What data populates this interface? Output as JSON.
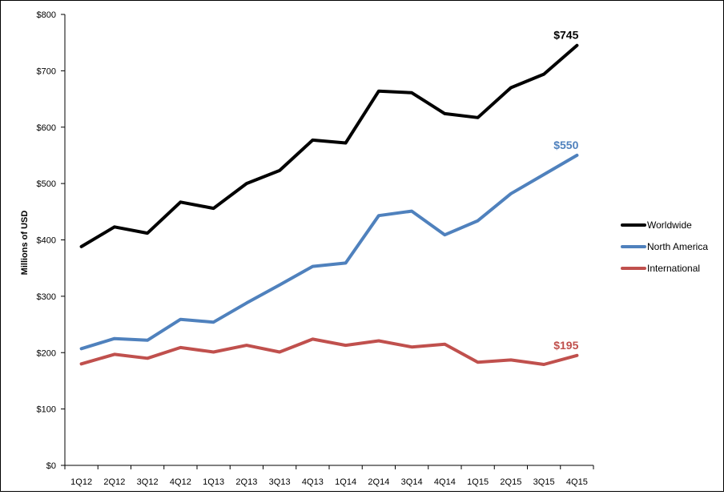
{
  "chart_data": {
    "type": "line",
    "title": "",
    "xlabel": "",
    "ylabel": "Millions of USD",
    "ylim": [
      0,
      800
    ],
    "y_tick_step": 100,
    "y_tick_prefix": "$",
    "grid": false,
    "legend_position": "right",
    "categories": [
      "1Q12",
      "2Q12",
      "3Q12",
      "4Q12",
      "1Q13",
      "2Q13",
      "3Q13",
      "4Q13",
      "1Q14",
      "2Q14",
      "3Q14",
      "4Q14",
      "1Q15",
      "2Q15",
      "3Q15",
      "4Q15"
    ],
    "series": [
      {
        "name": "Worldwide",
        "color": "#000000",
        "values": [
          388,
          423,
          412,
          467,
          456,
          500,
          523,
          577,
          572,
          664,
          661,
          624,
          617,
          670,
          694,
          745
        ],
        "end_label": "$745"
      },
      {
        "name": "North America",
        "color": "#4F81BD",
        "values": [
          207,
          225,
          222,
          259,
          254,
          288,
          320,
          353,
          359,
          443,
          451,
          409,
          434,
          482,
          516,
          550
        ],
        "end_label": "$550"
      },
      {
        "name": "International",
        "color": "#C0504D",
        "values": [
          180,
          197,
          190,
          209,
          201,
          213,
          201,
          224,
          213,
          221,
          210,
          215,
          183,
          187,
          179,
          195
        ],
        "end_label": "$195"
      }
    ]
  }
}
